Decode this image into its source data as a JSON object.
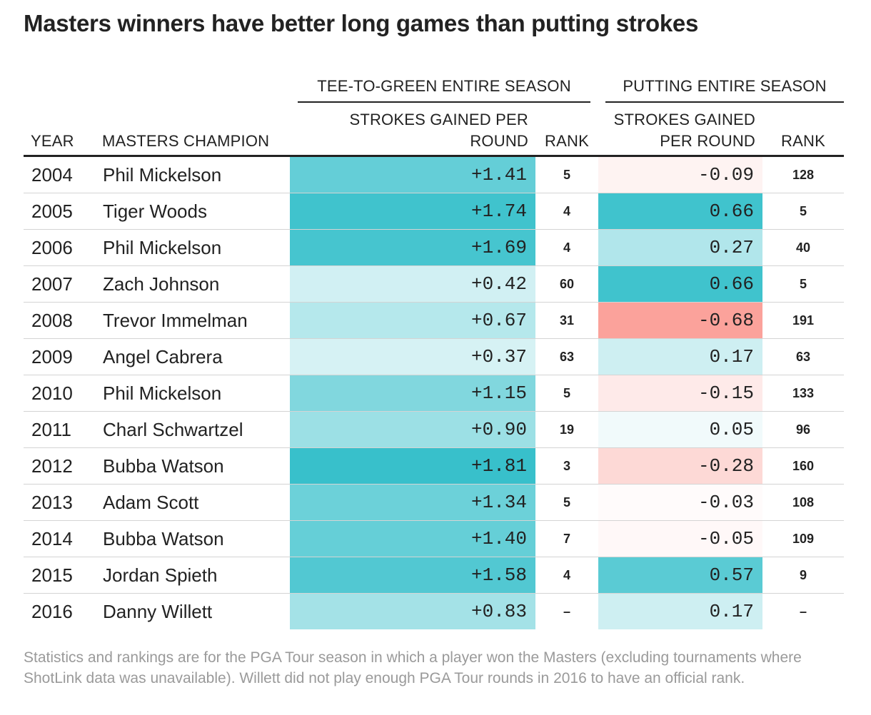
{
  "title": "Masters winners have better long games than putting strokes",
  "headers": {
    "group_ttg": "TEE-TO-GREEN ENTIRE SEASON",
    "group_putting": "PUTTING ENTIRE SEASON",
    "year": "YEAR",
    "champion": "MASTERS CHAMPION",
    "ttg_sg_line1": "STROKES GAINED PER",
    "ttg_sg_line2": "ROUND",
    "ttg_rank": "RANK",
    "put_sg_line1": "STROKES GAINED",
    "put_sg_line2": "PER ROUND",
    "put_rank": "RANK"
  },
  "chart_data": {
    "type": "table",
    "title": "Masters winners have better long games than putting strokes",
    "columns": [
      "YEAR",
      "MASTERS CHAMPION",
      "TEE-TO-GREEN STROKES GAINED PER ROUND",
      "TEE-TO-GREEN RANK",
      "PUTTING STROKES GAINED PER ROUND",
      "PUTTING RANK"
    ],
    "rows": [
      {
        "year": "2004",
        "champion": "Phil Mickelson",
        "ttg": 1.41,
        "ttg_text": "+1.41",
        "ttg_rank": "5",
        "putt": -0.09,
        "putt_text": "-0.09",
        "putt_rank": "128"
      },
      {
        "year": "2005",
        "champion": "Tiger Woods",
        "ttg": 1.74,
        "ttg_text": "+1.74",
        "ttg_rank": "4",
        "putt": 0.66,
        "putt_text": "0.66",
        "putt_rank": "5"
      },
      {
        "year": "2006",
        "champion": "Phil Mickelson",
        "ttg": 1.69,
        "ttg_text": "+1.69",
        "ttg_rank": "4",
        "putt": 0.27,
        "putt_text": "0.27",
        "putt_rank": "40"
      },
      {
        "year": "2007",
        "champion": "Zach Johnson",
        "ttg": 0.42,
        "ttg_text": "+0.42",
        "ttg_rank": "60",
        "putt": 0.66,
        "putt_text": "0.66",
        "putt_rank": "5"
      },
      {
        "year": "2008",
        "champion": "Trevor Immelman",
        "ttg": 0.67,
        "ttg_text": "+0.67",
        "ttg_rank": "31",
        "putt": -0.68,
        "putt_text": "-0.68",
        "putt_rank": "191"
      },
      {
        "year": "2009",
        "champion": "Angel Cabrera",
        "ttg": 0.37,
        "ttg_text": "+0.37",
        "ttg_rank": "63",
        "putt": 0.17,
        "putt_text": "0.17",
        "putt_rank": "63"
      },
      {
        "year": "2010",
        "champion": "Phil Mickelson",
        "ttg": 1.15,
        "ttg_text": "+1.15",
        "ttg_rank": "5",
        "putt": -0.15,
        "putt_text": "-0.15",
        "putt_rank": "133"
      },
      {
        "year": "2011",
        "champion": "Charl Schwartzel",
        "ttg": 0.9,
        "ttg_text": "+0.90",
        "ttg_rank": "19",
        "putt": 0.05,
        "putt_text": "0.05",
        "putt_rank": "96"
      },
      {
        "year": "2012",
        "champion": "Bubba Watson",
        "ttg": 1.81,
        "ttg_text": "+1.81",
        "ttg_rank": "3",
        "putt": -0.28,
        "putt_text": "-0.28",
        "putt_rank": "160"
      },
      {
        "year": "2013",
        "champion": "Adam Scott",
        "ttg": 1.34,
        "ttg_text": "+1.34",
        "ttg_rank": "5",
        "putt": -0.03,
        "putt_text": "-0.03",
        "putt_rank": "108"
      },
      {
        "year": "2014",
        "champion": "Bubba Watson",
        "ttg": 1.4,
        "ttg_text": "+1.40",
        "ttg_rank": "7",
        "putt": -0.05,
        "putt_text": "-0.05",
        "putt_rank": "109"
      },
      {
        "year": "2015",
        "champion": "Jordan Spieth",
        "ttg": 1.58,
        "ttg_text": "+1.58",
        "ttg_rank": "4",
        "putt": 0.57,
        "putt_text": "0.57",
        "putt_rank": "9"
      },
      {
        "year": "2016",
        "champion": "Danny Willett",
        "ttg": 0.83,
        "ttg_text": "+0.83",
        "ttg_rank": "–",
        "putt": 0.17,
        "putt_text": "0.17",
        "putt_rank": "–"
      }
    ],
    "color_scale": {
      "positive_max": "#34bfca",
      "negative_max": "#fb9f98",
      "neutral": "#ffffff",
      "ttg_domain_max": 1.85,
      "putt_domain_max": 0.7
    }
  },
  "footnote": "Statistics and rankings are for the PGA Tour season in which a player won the Masters (excluding tournaments where ShotLink data was unavailable). Willett did not play enough PGA Tour rounds in 2016 to have an official rank."
}
